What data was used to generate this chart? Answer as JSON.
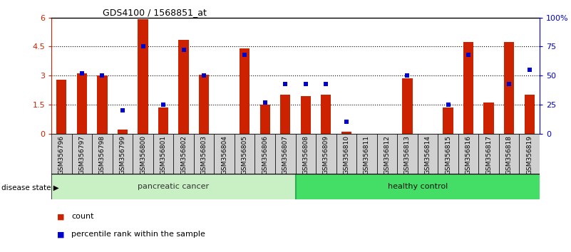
{
  "title": "GDS4100 / 1568851_at",
  "categories": [
    "GSM356796",
    "GSM356797",
    "GSM356798",
    "GSM356799",
    "GSM356800",
    "GSM356801",
    "GSM356802",
    "GSM356803",
    "GSM356804",
    "GSM356805",
    "GSM356806",
    "GSM356807",
    "GSM356808",
    "GSM356809",
    "GSM356810",
    "GSM356811",
    "GSM356812",
    "GSM356813",
    "GSM356814",
    "GSM356815",
    "GSM356816",
    "GSM356817",
    "GSM356818",
    "GSM356819"
  ],
  "count_values": [
    2.8,
    3.1,
    3.0,
    0.2,
    5.9,
    1.35,
    4.85,
    3.05,
    0.0,
    4.4,
    1.5,
    2.0,
    1.95,
    2.0,
    0.1,
    0.0,
    0.0,
    2.85,
    0.0,
    1.35,
    4.75,
    1.6,
    4.75,
    2.0
  ],
  "percentile_values": [
    null,
    52.0,
    50.0,
    20.0,
    75.0,
    25.0,
    72.5,
    50.0,
    null,
    68.0,
    27.0,
    43.0,
    43.0,
    43.0,
    10.0,
    null,
    null,
    50.0,
    null,
    25.0,
    68.0,
    null,
    43.0,
    55.0
  ],
  "pancreatic_cancer_count": 12,
  "group1_label": "pancreatic cancer",
  "group2_label": "healthy control",
  "disease_state_label": "disease state",
  "legend_count": "count",
  "legend_percentile": "percentile rank within the sample",
  "ylim_left": [
    0,
    6
  ],
  "ylim_right": [
    0,
    100
  ],
  "yticks_left": [
    0,
    1.5,
    3.0,
    4.5,
    6.0
  ],
  "ytick_labels_left": [
    "0",
    "1.5",
    "3",
    "4.5",
    "6"
  ],
  "yticks_right": [
    0,
    25,
    50,
    75,
    100
  ],
  "ytick_labels_right": [
    "0",
    "25",
    "50",
    "75",
    "100%"
  ],
  "bar_color": "#cc2200",
  "marker_color": "#0000cc",
  "group1_bg": "#c8f0c4",
  "group2_bg": "#44dd66",
  "tick_bg": "#d0d0d0"
}
